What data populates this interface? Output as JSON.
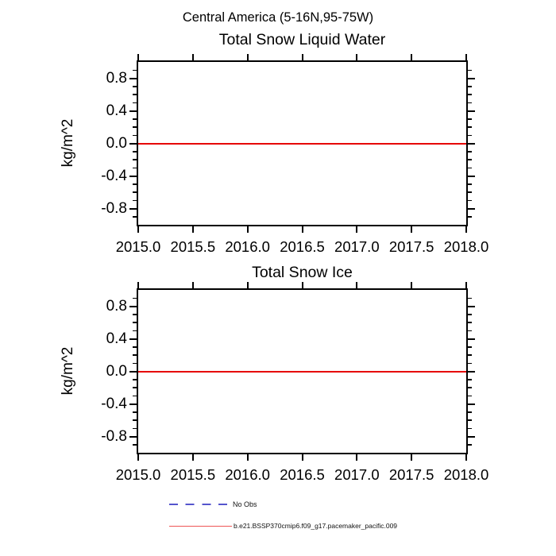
{
  "main_title": "Central America (5-16N,95-75W)",
  "chart_data": [
    {
      "type": "line",
      "title": "Total Snow Liquid Water",
      "xlabel": "",
      "ylabel": "kg/m^2",
      "xlim": [
        2015.0,
        2018.0
      ],
      "ylim": [
        -1.0,
        1.0
      ],
      "x_tick_values": [
        2015.0,
        2015.5,
        2016.0,
        2016.5,
        2017.0,
        2017.5,
        2018.0
      ],
      "x_tick_labels": [
        "2015.0",
        "2015.5",
        "2016.0",
        "2016.5",
        "2017.0",
        "2017.5",
        "2018.0"
      ],
      "y_tick_values": [
        0.8,
        0.4,
        0.0,
        -0.4,
        -0.8
      ],
      "y_tick_labels": [
        "0.8",
        "0.4",
        "0.0",
        "-0.4",
        "-0.8"
      ],
      "y_minor_step": 0.1,
      "grid": false,
      "series": [
        {
          "name": "b.e21.BSSP370cmip6.f09_g17.pacemaker_pacific.009",
          "color": "#e60000",
          "x": [
            2015.0,
            2018.0
          ],
          "y": [
            0.0,
            0.0
          ]
        }
      ]
    },
    {
      "type": "line",
      "title": "Total Snow Ice",
      "xlabel": "",
      "ylabel": "kg/m^2",
      "xlim": [
        2015.0,
        2018.0
      ],
      "ylim": [
        -1.0,
        1.0
      ],
      "x_tick_values": [
        2015.0,
        2015.5,
        2016.0,
        2016.5,
        2017.0,
        2017.5,
        2018.0
      ],
      "x_tick_labels": [
        "2015.0",
        "2015.5",
        "2016.0",
        "2016.5",
        "2017.0",
        "2017.5",
        "2018.0"
      ],
      "y_tick_values": [
        0.8,
        0.4,
        0.0,
        -0.4,
        -0.8
      ],
      "y_tick_labels": [
        "0.8",
        "0.4",
        "0.0",
        "-0.4",
        "-0.8"
      ],
      "y_minor_step": 0.1,
      "grid": false,
      "series": [
        {
          "name": "b.e21.BSSP370cmip6.f09_g17.pacemaker_pacific.009",
          "color": "#e60000",
          "x": [
            2015.0,
            2018.0
          ],
          "y": [
            0.0,
            0.0
          ]
        }
      ]
    }
  ],
  "legend": {
    "entries": [
      {
        "label": "No Obs",
        "line_style": "dashed",
        "color": "#5555cd"
      },
      {
        "label": "b.e21.BSSP370cmip6.f09_g17.pacemaker_pacific.009",
        "line_style": "solid",
        "color": "#ee5555"
      }
    ]
  }
}
